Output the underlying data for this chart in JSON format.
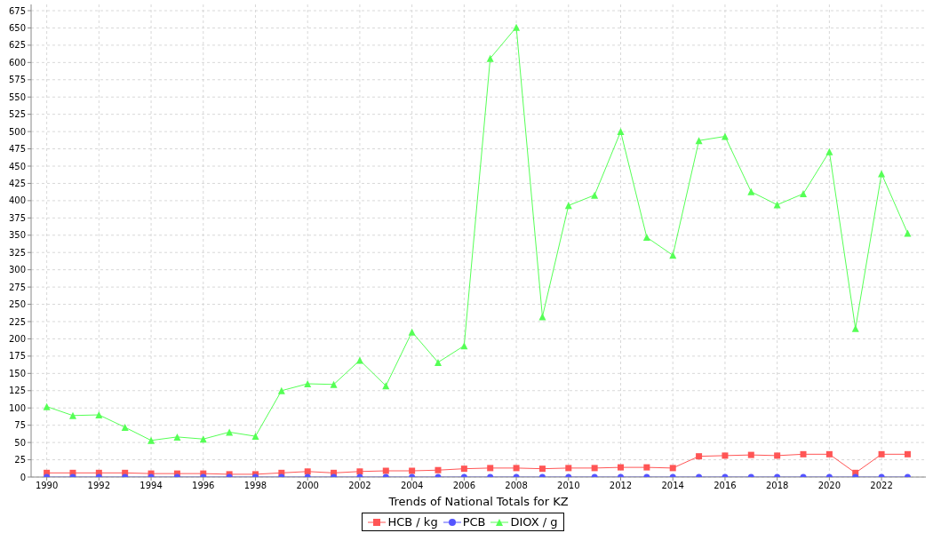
{
  "chart_data": {
    "type": "line",
    "xlabel": "Trends of National Totals for KZ",
    "x": [
      1990,
      1991,
      1992,
      1993,
      1994,
      1995,
      1996,
      1997,
      1998,
      1999,
      2000,
      2001,
      2002,
      2003,
      2004,
      2005,
      2006,
      2007,
      2008,
      2009,
      2010,
      2011,
      2012,
      2013,
      2014,
      2015,
      2016,
      2017,
      2018,
      2019,
      2020,
      2021,
      2022,
      2023
    ],
    "series": [
      {
        "name": "HCB / kg",
        "color": "#ff5555",
        "marker": "square",
        "values": [
          6,
          6,
          6,
          6,
          5,
          5,
          5,
          4,
          4,
          6,
          8,
          6,
          8,
          9,
          9,
          10,
          12,
          13,
          13,
          12,
          13,
          13,
          14,
          14,
          13,
          30,
          31,
          32,
          31,
          33,
          33,
          6,
          33,
          33
        ]
      },
      {
        "name": "PCB",
        "color": "#5555ff",
        "marker": "circle",
        "values": [
          0,
          0,
          0,
          0,
          0,
          0,
          0,
          0,
          0,
          0,
          0,
          0,
          0,
          0,
          0,
          0,
          0,
          0,
          0,
          0,
          0,
          0,
          0,
          0,
          0,
          0,
          0,
          0,
          0,
          0,
          0,
          0,
          0,
          0
        ]
      },
      {
        "name": "DIOX / g",
        "color": "#55ff55",
        "marker": "triangle",
        "values": [
          102,
          89,
          90,
          72,
          53,
          58,
          55,
          65,
          59,
          125,
          135,
          134,
          169,
          132,
          210,
          166,
          190,
          606,
          651,
          232,
          393,
          408,
          500,
          347,
          321,
          487,
          493,
          413,
          394,
          410,
          471,
          215,
          439,
          353
        ]
      }
    ],
    "xlim": [
      1989.4,
      2023.7
    ],
    "xticks": [
      1990,
      1992,
      1994,
      1996,
      1998,
      2000,
      2002,
      2004,
      2006,
      2008,
      2010,
      2012,
      2014,
      2016,
      2018,
      2020,
      2022
    ],
    "ylim": [
      0,
      684
    ],
    "yticks": [
      0,
      25,
      50,
      75,
      100,
      125,
      150,
      175,
      200,
      225,
      250,
      275,
      300,
      325,
      350,
      375,
      400,
      425,
      450,
      475,
      500,
      525,
      550,
      575,
      600,
      625,
      650,
      675
    ],
    "grid": true,
    "legend": "bottom"
  }
}
